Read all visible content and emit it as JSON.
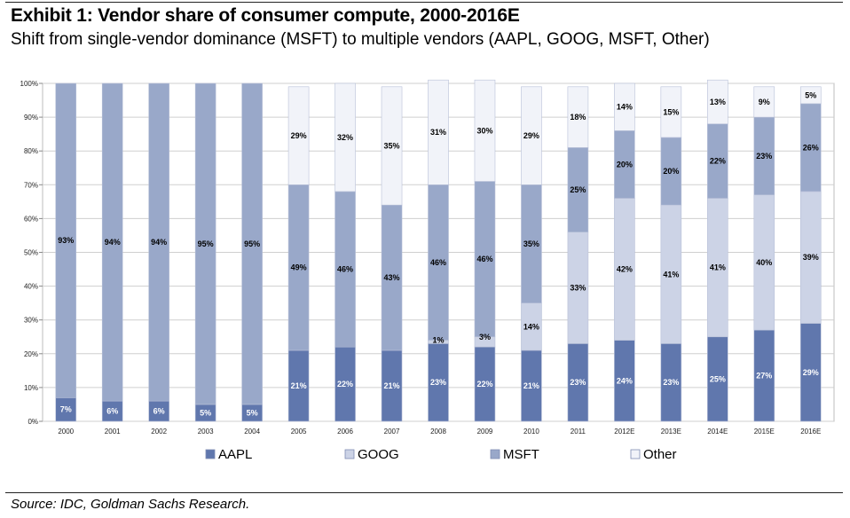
{
  "header": {
    "title": "Exhibit 1: Vendor share of consumer compute, 2000-2016E",
    "subtitle": "Shift from single-vendor dominance (MSFT) to multiple vendors (AAPL, GOOG, MSFT, Other)"
  },
  "footer": {
    "source": "Source: IDC, Goldman Sachs Research."
  },
  "chart_data": {
    "type": "bar",
    "stacked": true,
    "ylim": [
      0,
      100
    ],
    "yticks": [
      "0%",
      "10%",
      "20%",
      "30%",
      "40%",
      "50%",
      "60%",
      "70%",
      "80%",
      "90%",
      "100%"
    ],
    "grid": true,
    "legend_position": "bottom",
    "categories": [
      "2000",
      "2001",
      "2002",
      "2003",
      "2004",
      "2005",
      "2006",
      "2007",
      "2008",
      "2009",
      "2010",
      "2011",
      "2012E",
      "2013E",
      "2014E",
      "2015E",
      "2016E"
    ],
    "series": [
      {
        "name": "AAPL",
        "color": "#6077ad",
        "label_color": "#ffffff",
        "values": [
          7,
          6,
          6,
          5,
          5,
          21,
          22,
          21,
          23,
          22,
          21,
          23,
          24,
          23,
          25,
          27,
          29
        ],
        "labels": [
          "7%",
          "6%",
          "6%",
          "5%",
          "5%",
          "21%",
          "22%",
          "21%",
          "23%",
          "22%",
          "21%",
          "23%",
          "24%",
          "23%",
          "25%",
          "27%",
          "29%"
        ]
      },
      {
        "name": "GOOG",
        "color": "#ccd3e6",
        "label_color": "#000000",
        "values": [
          0,
          0,
          0,
          0,
          0,
          0,
          0,
          0,
          1,
          3,
          14,
          33,
          42,
          41,
          41,
          40,
          39
        ],
        "labels": [
          "",
          "",
          "",
          "",
          "",
          "",
          "",
          "",
          "1%",
          "3%",
          "14%",
          "33%",
          "42%",
          "41%",
          "41%",
          "40%",
          "39%"
        ]
      },
      {
        "name": "MSFT",
        "color": "#99a8c9",
        "label_color": "#000000",
        "values": [
          93,
          94,
          94,
          95,
          95,
          49,
          46,
          43,
          46,
          46,
          35,
          25,
          20,
          20,
          22,
          23,
          26
        ],
        "labels": [
          "93%",
          "94%",
          "94%",
          "95%",
          "95%",
          "49%",
          "46%",
          "43%",
          "46%",
          "46%",
          "35%",
          "25%",
          "20%",
          "20%",
          "22%",
          "23%",
          "26%"
        ]
      },
      {
        "name": "Other",
        "color": "#f1f3f9",
        "label_color": "#000000",
        "values": [
          0,
          0,
          0,
          0,
          0,
          29,
          32,
          35,
          31,
          30,
          29,
          18,
          14,
          15,
          13,
          9,
          5
        ],
        "labels": [
          "",
          "",
          "",
          "",
          "",
          "29%",
          "32%",
          "35%",
          "31%",
          "30%",
          "29%",
          "18%",
          "14%",
          "15%",
          "13%",
          "9%",
          "5%"
        ]
      }
    ]
  }
}
